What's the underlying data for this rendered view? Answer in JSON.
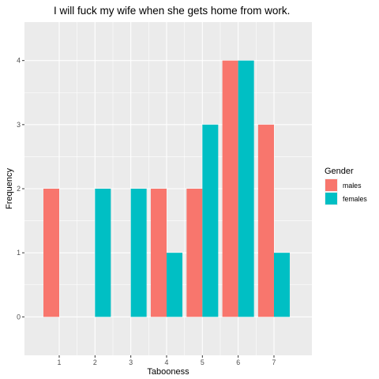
{
  "chart_data": {
    "type": "bar",
    "title": "I will fuck my wife when she gets home from work.",
    "xlabel": "Tabooness",
    "ylabel": "Frequency",
    "categories": [
      "1",
      "2",
      "3",
      "4",
      "5",
      "6",
      "7"
    ],
    "series": [
      {
        "name": "males",
        "values": [
          2,
          0,
          0,
          2,
          2,
          4,
          3
        ],
        "color": "#F8766D"
      },
      {
        "name": "females",
        "values": [
          0,
          2,
          2,
          1,
          3,
          4,
          1
        ],
        "color": "#00BFC4"
      }
    ],
    "ylim": [
      -0.6,
      4.6
    ],
    "yticks": [
      0,
      1,
      2,
      3,
      4
    ],
    "grid": true,
    "panel_background": "#EBEBEB",
    "legend": {
      "title": "Gender",
      "position": "right"
    }
  }
}
